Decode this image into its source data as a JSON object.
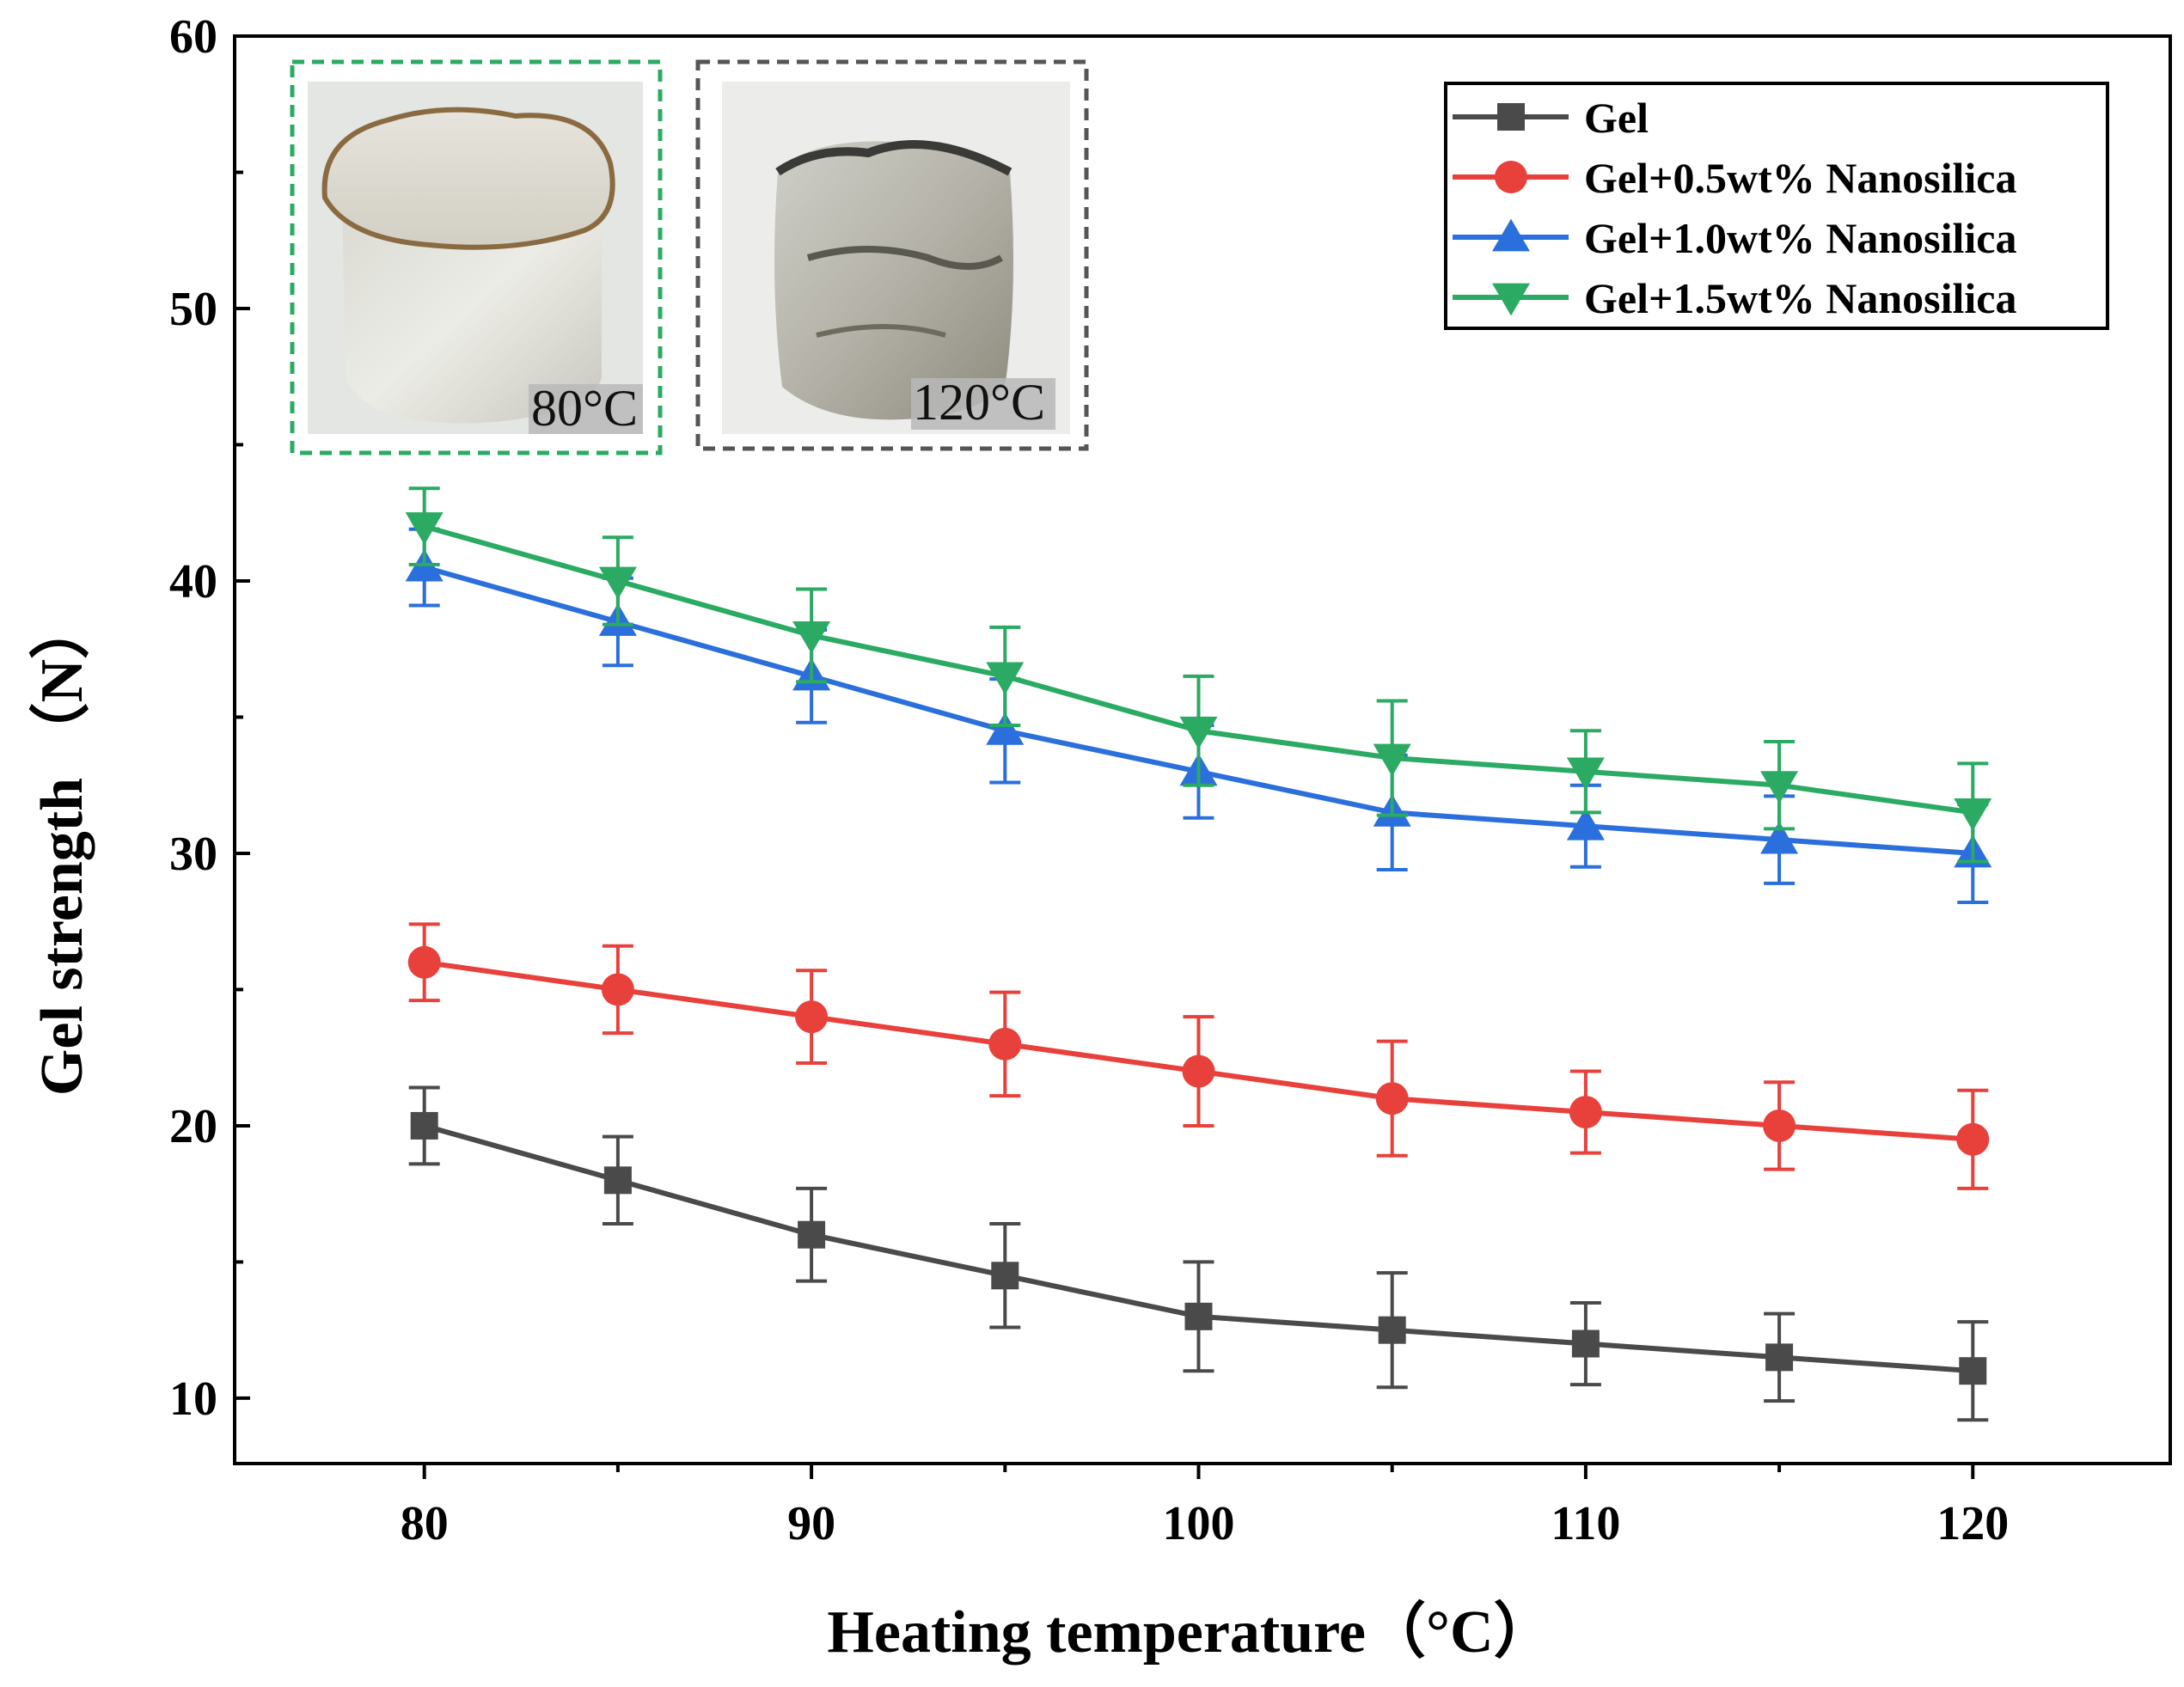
{
  "chart_data": {
    "type": "line",
    "title": "",
    "xlabel": "Heating temperature（°C）",
    "ylabel": "Gel strength （N）",
    "x": [
      80,
      85,
      90,
      95,
      100,
      105,
      110,
      115,
      120
    ],
    "xticks": [
      80,
      90,
      100,
      110,
      120
    ],
    "yticks": [
      10,
      20,
      30,
      40,
      50,
      60
    ],
    "xlim": [
      75.1,
      125.1
    ],
    "ylim": [
      7.6,
      60
    ],
    "legend_position": "top-right",
    "series": [
      {
        "name": "Gel",
        "marker": "square",
        "color": "#4a4a4a",
        "values": [
          20,
          18,
          16,
          14.5,
          13,
          12.5,
          12,
          11.5,
          11
        ],
        "errors": [
          1.4,
          1.6,
          1.7,
          1.9,
          2.0,
          2.1,
          1.5,
          1.6,
          1.8
        ]
      },
      {
        "name": "Gel+0.5wt% Nanosilica",
        "marker": "circle",
        "color": "#e8413c",
        "values": [
          26,
          25,
          24,
          23,
          22,
          21,
          20.5,
          20,
          19.5
        ],
        "errors": [
          1.4,
          1.6,
          1.7,
          1.9,
          2.0,
          2.1,
          1.5,
          1.6,
          1.8
        ]
      },
      {
        "name": "Gel+1.0wt% Nanosilica",
        "marker": "triangle-up",
        "color": "#2a6fdc",
        "values": [
          40.5,
          38.5,
          36.5,
          34.5,
          33,
          31.5,
          31,
          30.5,
          30
        ],
        "errors": [
          1.4,
          1.6,
          1.7,
          1.9,
          1.7,
          2.1,
          1.5,
          1.6,
          1.8
        ]
      },
      {
        "name": "Gel+1.5wt% Nanosilica",
        "marker": "triangle-down",
        "color": "#2aaa62",
        "values": [
          42,
          40,
          38,
          36.5,
          34.5,
          33.5,
          33,
          32.5,
          31.5
        ],
        "errors": [
          1.4,
          1.6,
          1.7,
          1.8,
          2.0,
          2.1,
          1.5,
          1.6,
          1.8
        ]
      }
    ],
    "annotations": [
      "80°C",
      "120°C"
    ]
  },
  "insets": [
    {
      "label": "80°C",
      "border_color": "#2aaa62"
    },
    {
      "label": "120°C",
      "border_color": "#555555"
    }
  ]
}
